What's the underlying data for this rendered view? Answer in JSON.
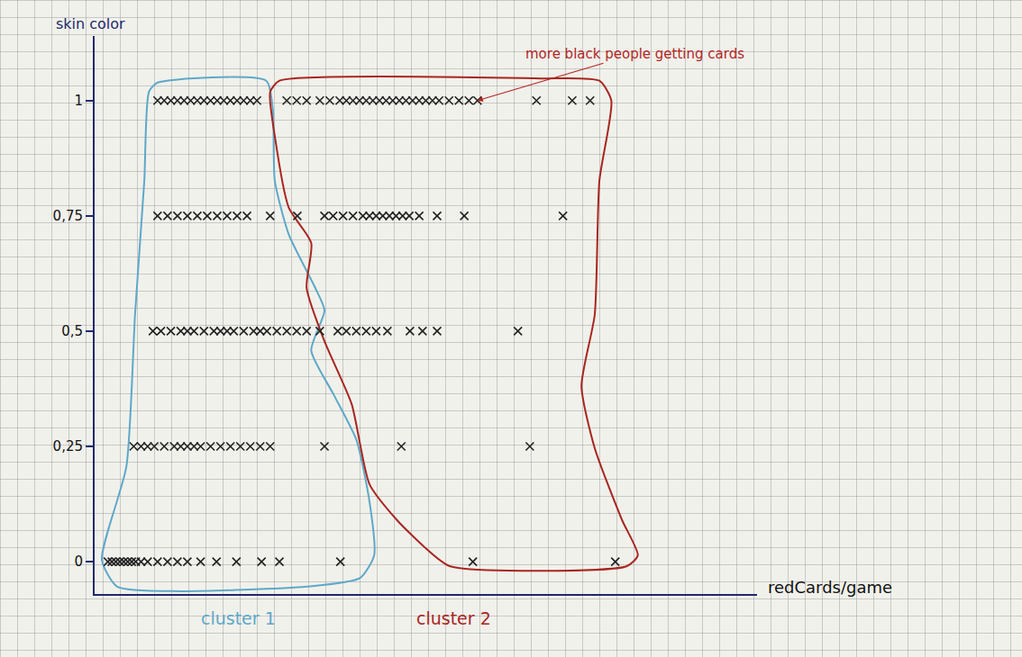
{
  "chart_data": {
    "type": "scatter",
    "x_label": "redCards/game",
    "y_label": "skin color",
    "xlim": [
      0,
      100
    ],
    "ylim": [
      -0.07,
      1.14
    ],
    "yticks": [
      0,
      {
        "value": 0.25,
        "label": "0,25"
      },
      {
        "value": 0.5,
        "label": "0,5"
      },
      {
        "value": 0.75,
        "label": "0,75"
      },
      1
    ],
    "tick_labels": "y",
    "grid": false,
    "color": "#222222",
    "marker": "x",
    "x": [
      9.5,
      10.5,
      11.5,
      12.5,
      13.5,
      14.5,
      15.5,
      16.5,
      17.5,
      18.5,
      19.5,
      20.5,
      21.5,
      22.5,
      23.5,
      24.5,
      29,
      30.5,
      32,
      34,
      35.5,
      37,
      38,
      39,
      40,
      41,
      42,
      43,
      44,
      45,
      46,
      47,
      48,
      49,
      50,
      51,
      52,
      53.5,
      55,
      56.5,
      57.8,
      66.7,
      72.1,
      74.8,
      9.5,
      11,
      12.5,
      14,
      15.5,
      17,
      18.5,
      20,
      21.5,
      23,
      26.5,
      30.6,
      34.7,
      36,
      37.5,
      39,
      40.5,
      41.5,
      42.5,
      43.5,
      44.5,
      45.5,
      46.5,
      47.5,
      49,
      51.7,
      55.8,
      70.7,
      8.8,
      10,
      11.5,
      13,
      14,
      15,
      16.5,
      18,
      19,
      20,
      21,
      22.5,
      24,
      25,
      26,
      27.5,
      29,
      30.5,
      32,
      34,
      36.7,
      38,
      39.5,
      41,
      42.5,
      44.2,
      47.6,
      49.5,
      51.7,
      63.9,
      5.9,
      7,
      8,
      9,
      10.5,
      12,
      13,
      14,
      15,
      16,
      17.5,
      19,
      20.5,
      22,
      23.5,
      25,
      26.5,
      34.7,
      46.3,
      65.7,
      2,
      2.6,
      3.2,
      3.8,
      4.4,
      5,
      5.6,
      6.2,
      7,
      8,
      9.5,
      11,
      12.5,
      14,
      16,
      18.4,
      21.4,
      25.2,
      27.9,
      37.1,
      57.1,
      78.6
    ],
    "values": [
      1,
      1,
      1,
      1,
      1,
      1,
      1,
      1,
      1,
      1,
      1,
      1,
      1,
      1,
      1,
      1,
      1,
      1,
      1,
      1,
      1,
      1,
      1,
      1,
      1,
      1,
      1,
      1,
      1,
      1,
      1,
      1,
      1,
      1,
      1,
      1,
      1,
      1,
      1,
      1,
      1,
      1,
      1,
      1,
      0.75,
      0.75,
      0.75,
      0.75,
      0.75,
      0.75,
      0.75,
      0.75,
      0.75,
      0.75,
      0.75,
      0.75,
      0.75,
      0.75,
      0.75,
      0.75,
      0.75,
      0.75,
      0.75,
      0.75,
      0.75,
      0.75,
      0.75,
      0.75,
      0.75,
      0.75,
      0.75,
      0.75,
      0.5,
      0.5,
      0.5,
      0.5,
      0.5,
      0.5,
      0.5,
      0.5,
      0.5,
      0.5,
      0.5,
      0.5,
      0.5,
      0.5,
      0.5,
      0.5,
      0.5,
      0.5,
      0.5,
      0.5,
      0.5,
      0.5,
      0.5,
      0.5,
      0.5,
      0.5,
      0.5,
      0.5,
      0.5,
      0.5,
      0.25,
      0.25,
      0.25,
      0.25,
      0.25,
      0.25,
      0.25,
      0.25,
      0.25,
      0.25,
      0.25,
      0.25,
      0.25,
      0.25,
      0.25,
      0.25,
      0.25,
      0.25,
      0.25,
      0.25,
      0,
      0,
      0,
      0,
      0,
      0,
      0,
      0,
      0,
      0,
      0,
      0,
      0,
      0,
      0,
      0,
      0,
      0,
      0,
      0,
      0,
      0
    ],
    "clusters": [
      {
        "name": "cluster 1",
        "color": "#5fa8c8",
        "outline_x": [
          9.5,
          25.9,
          26.9,
          27.2,
          29.3,
          33.3,
          34.7,
          32.7,
          36.1,
          39.5,
          41.5,
          42.2,
          40.1,
          32.0,
          12.9,
          3.4,
          1.1,
          4.8,
          6.1,
          7.5,
          8.2
        ],
        "outline_y": [
          1.039,
          1.043,
          0.981,
          0.826,
          0.71,
          0.594,
          0.545,
          0.458,
          0.362,
          0.265,
          0.13,
          0.014,
          -0.035,
          -0.054,
          -0.064,
          -0.054,
          0.004,
          0.207,
          0.536,
          0.826,
          1.019
        ]
      },
      {
        "name": "cluster 2",
        "color": "#a8261f",
        "outline_x": [
          27.9,
          67.3,
          76.2,
          78.0,
          76.2,
          75.5,
          73.5,
          75.5,
          79.6,
          82.0,
          80.3,
          53.7,
          49.7,
          45.6,
          41.5,
          38.8,
          34.7,
          32.0,
          32.7,
          29.3,
          27.2,
          26.5
        ],
        "outline_y": [
          1.043,
          1.048,
          1.043,
          1.0,
          0.826,
          0.536,
          0.381,
          0.246,
          0.091,
          0.014,
          -0.01,
          -0.01,
          0.033,
          0.091,
          0.168,
          0.342,
          0.478,
          0.594,
          0.691,
          0.768,
          0.923,
          1.019
        ]
      }
    ],
    "annotations": [
      {
        "text": "more black people getting cards",
        "x": 57.8,
        "y": 1,
        "color": "#b3261e"
      }
    ]
  }
}
